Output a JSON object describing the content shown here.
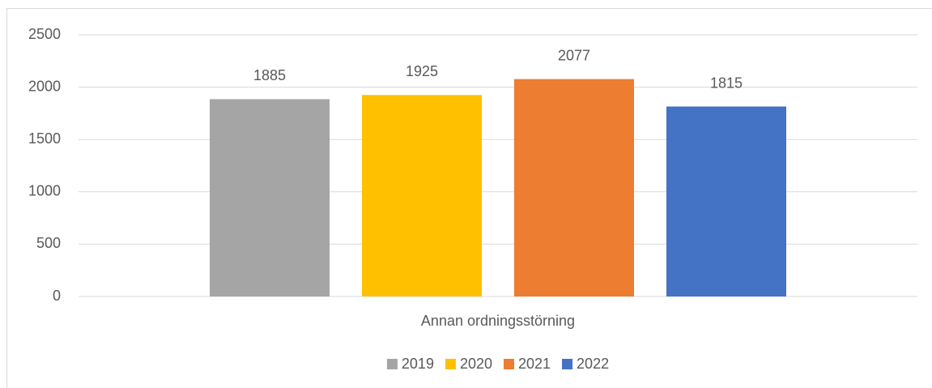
{
  "chart_data": {
    "type": "bar",
    "categories": [
      "Annan ordningsstörning"
    ],
    "series": [
      {
        "name": "2019",
        "color": "#a5a5a5",
        "values": [
          1885
        ]
      },
      {
        "name": "2020",
        "color": "#ffc000",
        "values": [
          1925
        ]
      },
      {
        "name": "2021",
        "color": "#ed7d31",
        "values": [
          2077
        ]
      },
      {
        "name": "2022",
        "color": "#4472c4",
        "values": [
          1815
        ]
      }
    ],
    "ylim": [
      0,
      2500
    ],
    "yticks": [
      0,
      500,
      1000,
      1500,
      2000,
      2500
    ],
    "grid": true,
    "legend": "bottom"
  }
}
